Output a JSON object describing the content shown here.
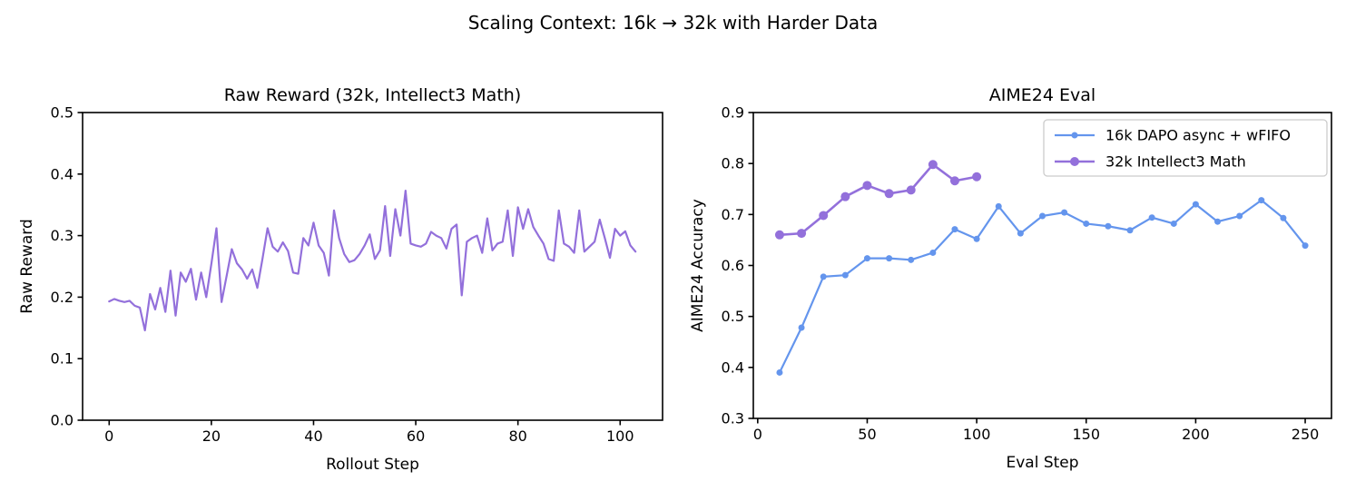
{
  "figure": {
    "suptitle": "Scaling Context: 16k → 32k with Harder Data",
    "background_color": "#ffffff",
    "text_color": "#000000",
    "spine_color": "#000000"
  },
  "colors": {
    "blue_series": "#6495ED",
    "purple_series": "#9370DB"
  },
  "chart_data": [
    {
      "type": "line",
      "title": "Raw Reward (32k, Intellect3 Math)",
      "xlabel": "Rollout Step",
      "ylabel": "Raw Reward",
      "xlim": [
        -5.2,
        108.3
      ],
      "ylim": [
        0.0,
        0.5
      ],
      "xticks": [
        0,
        20,
        40,
        60,
        80,
        100
      ],
      "xtick_labels": [
        "0",
        "20",
        "40",
        "60",
        "80",
        "100"
      ],
      "yticks": [
        0.0,
        0.1,
        0.2,
        0.3,
        0.4,
        0.5
      ],
      "ytick_labels": [
        "0.0",
        "0.1",
        "0.2",
        "0.3",
        "0.4",
        "0.5"
      ],
      "grid": false,
      "legend": null,
      "series": [
        {
          "name": "Raw Reward (32k, Intellect3 Math)",
          "color": "#9370DB",
          "marker": false,
          "marker_radius": 0,
          "line_width": 2.2,
          "x": [
            0,
            1,
            2,
            3,
            4,
            5,
            6,
            7,
            8,
            9,
            10,
            11,
            12,
            13,
            14,
            15,
            16,
            17,
            18,
            19,
            20,
            21,
            22,
            23,
            24,
            25,
            26,
            27,
            28,
            29,
            30,
            31,
            32,
            33,
            34,
            35,
            36,
            37,
            38,
            39,
            40,
            41,
            42,
            43,
            44,
            45,
            46,
            47,
            48,
            49,
            50,
            51,
            52,
            53,
            54,
            55,
            56,
            57,
            58,
            59,
            60,
            61,
            62,
            63,
            64,
            65,
            66,
            67,
            68,
            69,
            70,
            71,
            72,
            73,
            74,
            75,
            76,
            77,
            78,
            79,
            80,
            81,
            82,
            83,
            84,
            85,
            86,
            87,
            88,
            89,
            90,
            91,
            92,
            93,
            94,
            95,
            96,
            97,
            98,
            99,
            100,
            101,
            102,
            103
          ],
          "values": [
            0.193,
            0.197,
            0.194,
            0.192,
            0.194,
            0.186,
            0.183,
            0.146,
            0.205,
            0.18,
            0.215,
            0.176,
            0.243,
            0.17,
            0.24,
            0.225,
            0.246,
            0.196,
            0.24,
            0.2,
            0.254,
            0.312,
            0.192,
            0.235,
            0.278,
            0.255,
            0.245,
            0.23,
            0.245,
            0.215,
            0.262,
            0.312,
            0.282,
            0.274,
            0.289,
            0.275,
            0.24,
            0.238,
            0.296,
            0.284,
            0.321,
            0.284,
            0.272,
            0.235,
            0.341,
            0.296,
            0.27,
            0.257,
            0.26,
            0.27,
            0.284,
            0.302,
            0.262,
            0.276,
            0.348,
            0.267,
            0.343,
            0.3,
            0.373,
            0.287,
            0.284,
            0.282,
            0.287,
            0.306,
            0.3,
            0.296,
            0.279,
            0.311,
            0.318,
            0.203,
            0.29,
            0.296,
            0.3,
            0.272,
            0.328,
            0.276,
            0.287,
            0.29,
            0.341,
            0.267,
            0.346,
            0.311,
            0.343,
            0.314,
            0.3,
            0.287,
            0.262,
            0.259,
            0.341,
            0.287,
            0.282,
            0.272,
            0.341,
            0.274,
            0.282,
            0.29,
            0.326,
            0.296,
            0.264,
            0.311,
            0.3,
            0.307,
            0.284,
            0.274
          ]
        }
      ]
    },
    {
      "type": "line",
      "title": "AIME24 Eval",
      "xlabel": "Eval Step",
      "ylabel": "AIME24 Accuracy",
      "xlim": [
        -2,
        262
      ],
      "ylim": [
        0.3,
        0.9
      ],
      "xticks": [
        0,
        50,
        100,
        150,
        200,
        250
      ],
      "xtick_labels": [
        "0",
        "50",
        "100",
        "150",
        "200",
        "250"
      ],
      "yticks": [
        0.3,
        0.4,
        0.5,
        0.6,
        0.7,
        0.8,
        0.9
      ],
      "ytick_labels": [
        "0.3",
        "0.4",
        "0.5",
        "0.6",
        "0.7",
        "0.8",
        "0.9"
      ],
      "grid": false,
      "legend": {
        "position": "upper right"
      },
      "series": [
        {
          "name": "16k DAPO async + wFIFO",
          "color": "#6495ED",
          "marker": true,
          "marker_radius": 3.5,
          "line_width": 2.2,
          "x": [
            10,
            20,
            30,
            40,
            50,
            60,
            70,
            80,
            90,
            100,
            110,
            120,
            130,
            140,
            150,
            160,
            170,
            180,
            190,
            200,
            210,
            220,
            230,
            240,
            250
          ],
          "values": [
            0.39,
            0.478,
            0.578,
            0.581,
            0.614,
            0.614,
            0.611,
            0.625,
            0.671,
            0.652,
            0.716,
            0.663,
            0.697,
            0.704,
            0.682,
            0.677,
            0.669,
            0.694,
            0.682,
            0.72,
            0.686,
            0.697,
            0.728,
            0.693,
            0.639
          ]
        },
        {
          "name": "32k Intellect3 Math",
          "color": "#9370DB",
          "marker": true,
          "marker_radius": 5,
          "line_width": 2.6,
          "x": [
            10,
            20,
            30,
            40,
            50,
            60,
            70,
            80,
            90,
            100
          ],
          "values": [
            0.66,
            0.663,
            0.698,
            0.735,
            0.757,
            0.741,
            0.748,
            0.798,
            0.766,
            0.774
          ]
        }
      ]
    }
  ]
}
